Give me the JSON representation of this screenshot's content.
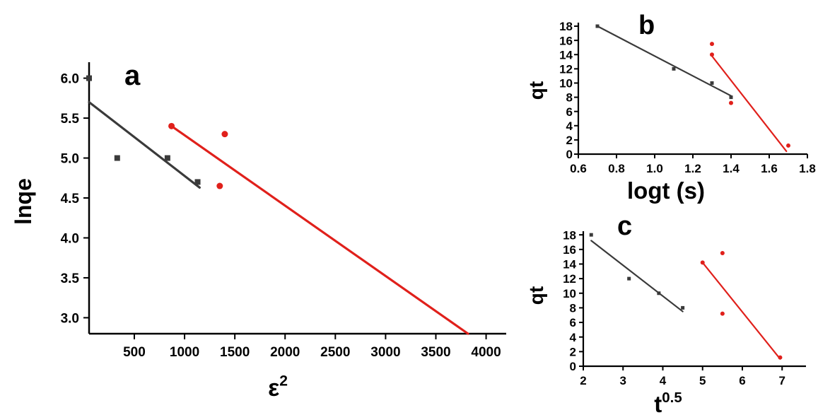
{
  "colors": {
    "black_series": "#3a3a3a",
    "red_series": "#e0201b",
    "axis": "#000000"
  },
  "chart_data": [
    {
      "panel": "a",
      "type": "scatter",
      "panel_letter": "a",
      "xlabel": "ε",
      "xlabel_sup": "2",
      "ylabel": "lnqe",
      "xlim": [
        50,
        4200
      ],
      "ylim": [
        2.8,
        6.2
      ],
      "xticks": [
        500,
        1000,
        1500,
        2000,
        2500,
        3000,
        3500,
        4000
      ],
      "yticks": [
        3.0,
        3.5,
        4.0,
        4.5,
        5.0,
        5.5,
        6.0
      ],
      "ytick_labels": [
        "3.0",
        "3.5",
        "4.0",
        "4.5",
        "5.0",
        "5.5",
        "6.0"
      ],
      "series": [
        {
          "color": "black",
          "marker": "square",
          "points": [
            [
              50,
              6.0
            ],
            [
              330,
              5.0
            ],
            [
              830,
              5.0
            ],
            [
              1130,
              4.7
            ]
          ],
          "fit": [
            [
              50,
              5.7
            ],
            [
              1150,
              4.63
            ]
          ]
        },
        {
          "color": "red",
          "marker": "circle",
          "points": [
            [
              870,
              5.4
            ],
            [
              1400,
              5.3
            ],
            [
              1350,
              4.65
            ]
          ],
          "fit": [
            [
              870,
              5.4
            ],
            [
              3820,
              2.8
            ]
          ]
        }
      ]
    },
    {
      "panel": "b",
      "type": "scatter",
      "panel_letter": "b",
      "xlabel": "logt (s)",
      "ylabel": "qt",
      "xlim": [
        0.6,
        1.8
      ],
      "ylim": [
        0,
        18.5
      ],
      "xticks": [
        0.6,
        0.8,
        1.0,
        1.2,
        1.4,
        1.6,
        1.8
      ],
      "xtick_labels": [
        "0.6",
        "0.8",
        "1.0",
        "1.2",
        "1.4",
        "1.6",
        "1.8"
      ],
      "yticks": [
        0,
        2,
        4,
        6,
        8,
        10,
        12,
        14,
        16,
        18
      ],
      "series": [
        {
          "color": "black",
          "marker": "square",
          "points": [
            [
              0.7,
              18
            ],
            [
              1.1,
              12
            ],
            [
              1.3,
              10
            ],
            [
              1.4,
              8
            ]
          ],
          "fit": [
            [
              0.7,
              18
            ],
            [
              1.4,
              8.2
            ]
          ]
        },
        {
          "color": "red",
          "marker": "circle",
          "points": [
            [
              1.3,
              15.5
            ],
            [
              1.3,
              14
            ],
            [
              1.4,
              7.2
            ],
            [
              1.7,
              1.2
            ]
          ],
          "fit": [
            [
              1.3,
              13.8
            ],
            [
              1.69,
              0.4
            ]
          ]
        }
      ]
    },
    {
      "panel": "c",
      "type": "scatter",
      "panel_letter": "c",
      "xlabel": "t",
      "xlabel_sup": "0.5",
      "ylabel": "qt",
      "xlim": [
        2,
        7.6
      ],
      "ylim": [
        0,
        18.5
      ],
      "xticks": [
        2,
        3,
        4,
        5,
        6,
        7
      ],
      "yticks": [
        0,
        2,
        4,
        6,
        8,
        10,
        12,
        14,
        16,
        18
      ],
      "series": [
        {
          "color": "black",
          "marker": "square",
          "points": [
            [
              2.2,
              18
            ],
            [
              3.15,
              12
            ],
            [
              3.9,
              10
            ],
            [
              4.5,
              8
            ]
          ],
          "fit": [
            [
              2.2,
              17.2
            ],
            [
              4.5,
              7.5
            ]
          ]
        },
        {
          "color": "red",
          "marker": "circle",
          "points": [
            [
              5.0,
              14.2
            ],
            [
              5.5,
              15.5
            ],
            [
              5.5,
              7.2
            ],
            [
              6.95,
              1.2
            ]
          ],
          "fit": [
            [
              5.0,
              14.2
            ],
            [
              6.95,
              1.0
            ]
          ]
        }
      ]
    }
  ]
}
